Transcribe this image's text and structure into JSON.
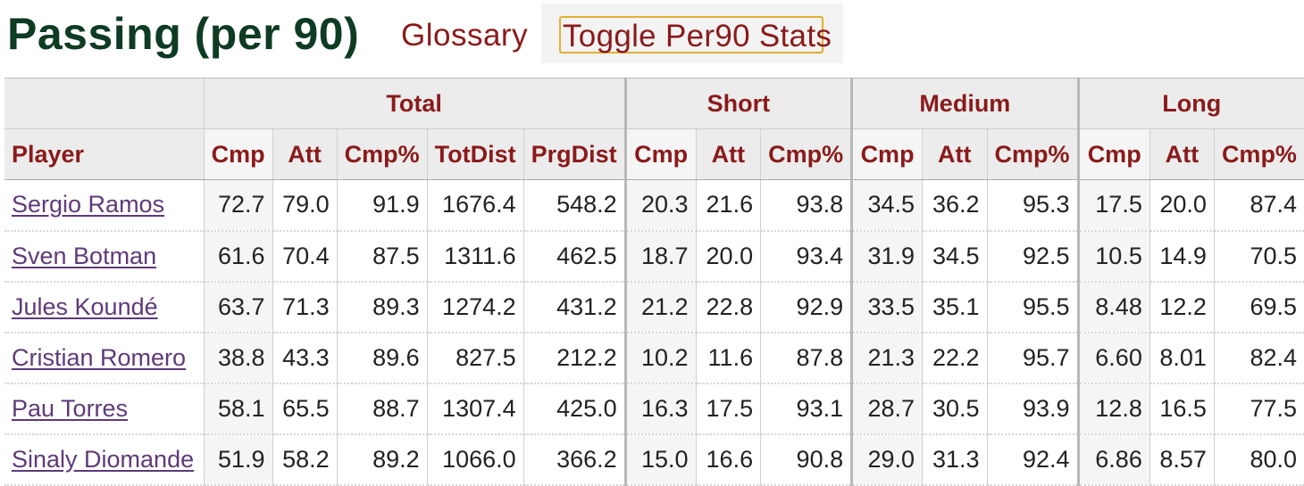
{
  "header": {
    "title": "Passing (per 90)",
    "glossary_label": "Glossary",
    "toggle_label": "Toggle Per90 Stats"
  },
  "table": {
    "groups": [
      "",
      "Total",
      "Short",
      "Medium",
      "Long"
    ],
    "columns": [
      "Player",
      "Cmp",
      "Att",
      "Cmp%",
      "TotDist",
      "PrgDist",
      "Cmp",
      "Att",
      "Cmp%",
      "Cmp",
      "Att",
      "Cmp%",
      "Cmp",
      "Att",
      "Cmp%"
    ],
    "rows": [
      {
        "player": "Sergio Ramos",
        "values": [
          "72.7",
          "79.0",
          "91.9",
          "1676.4",
          "548.2",
          "20.3",
          "21.6",
          "93.8",
          "34.5",
          "36.2",
          "95.3",
          "17.5",
          "20.0",
          "87.4"
        ]
      },
      {
        "player": "Sven Botman",
        "values": [
          "61.6",
          "70.4",
          "87.5",
          "1311.6",
          "462.5",
          "18.7",
          "20.0",
          "93.4",
          "31.9",
          "34.5",
          "92.5",
          "10.5",
          "14.9",
          "70.5"
        ]
      },
      {
        "player": "Jules Koundé",
        "values": [
          "63.7",
          "71.3",
          "89.3",
          "1274.2",
          "431.2",
          "21.2",
          "22.8",
          "92.9",
          "33.5",
          "35.1",
          "95.5",
          "8.48",
          "12.2",
          "69.5"
        ]
      },
      {
        "player": "Cristian Romero",
        "values": [
          "38.8",
          "43.3",
          "89.6",
          "827.5",
          "212.2",
          "10.2",
          "11.6",
          "87.8",
          "21.3",
          "22.2",
          "95.7",
          "6.60",
          "8.01",
          "82.4"
        ]
      },
      {
        "player": "Pau Torres",
        "values": [
          "58.1",
          "65.5",
          "88.7",
          "1307.4",
          "425.0",
          "16.3",
          "17.5",
          "93.1",
          "28.7",
          "30.5",
          "93.9",
          "12.8",
          "16.5",
          "77.5"
        ]
      },
      {
        "player": "Sinaly Diomande",
        "values": [
          "51.9",
          "58.2",
          "89.2",
          "1066.0",
          "366.2",
          "15.0",
          "16.6",
          "90.8",
          "29.0",
          "31.3",
          "92.4",
          "6.86",
          "8.57",
          "80.0"
        ]
      }
    ]
  }
}
